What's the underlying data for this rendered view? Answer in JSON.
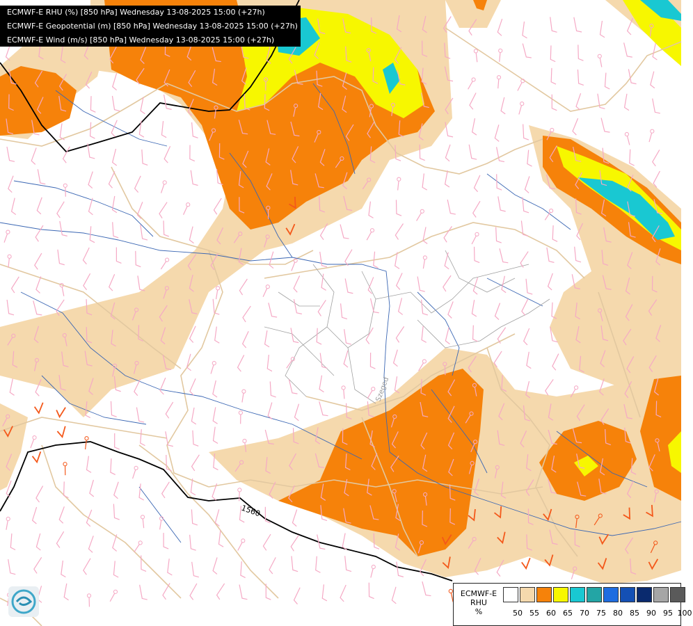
{
  "header": {
    "lines": [
      "ECMWF-E RHU (%) [850 hPa] Wednesday 13-08-2025 15:00 (+27h)",
      "ECMWF-E Geopotential (m) [850 hPa] Wednesday 13-08-2025 15:00 (+27h)",
      "ECMWF-E Wind (m/s) [850 hPa] Wednesday 13-08-2025 15:00 (+27h)"
    ]
  },
  "map": {
    "contour_label": "1560",
    "city_label": "Szeged"
  },
  "legend": {
    "model": "ECMWF-E",
    "variable": "RHU",
    "unit": "%",
    "ticks": [
      "50",
      "55",
      "60",
      "65",
      "70",
      "75",
      "80",
      "85",
      "90",
      "95",
      "100"
    ],
    "colors": [
      "#ffffff",
      "#f5d9ad",
      "#f6820a",
      "#f7f700",
      "#19c8d2",
      "#23a5a5",
      "#1f6de0",
      "#1450b4",
      "#0a2a6e",
      "#a6a6a6",
      "#5a5a5a"
    ]
  },
  "colors": {
    "rh_55": "#f5d9ad",
    "rh_60": "#f6820a",
    "rh_65": "#f7f700",
    "rh_70": "#19c8d2",
    "borders": "#e2c8a0",
    "rivers": "#3a66b3",
    "wind_barbs": "#f5a9c5",
    "strong_barbs": "#f4581a",
    "geopotential": "#000000"
  }
}
